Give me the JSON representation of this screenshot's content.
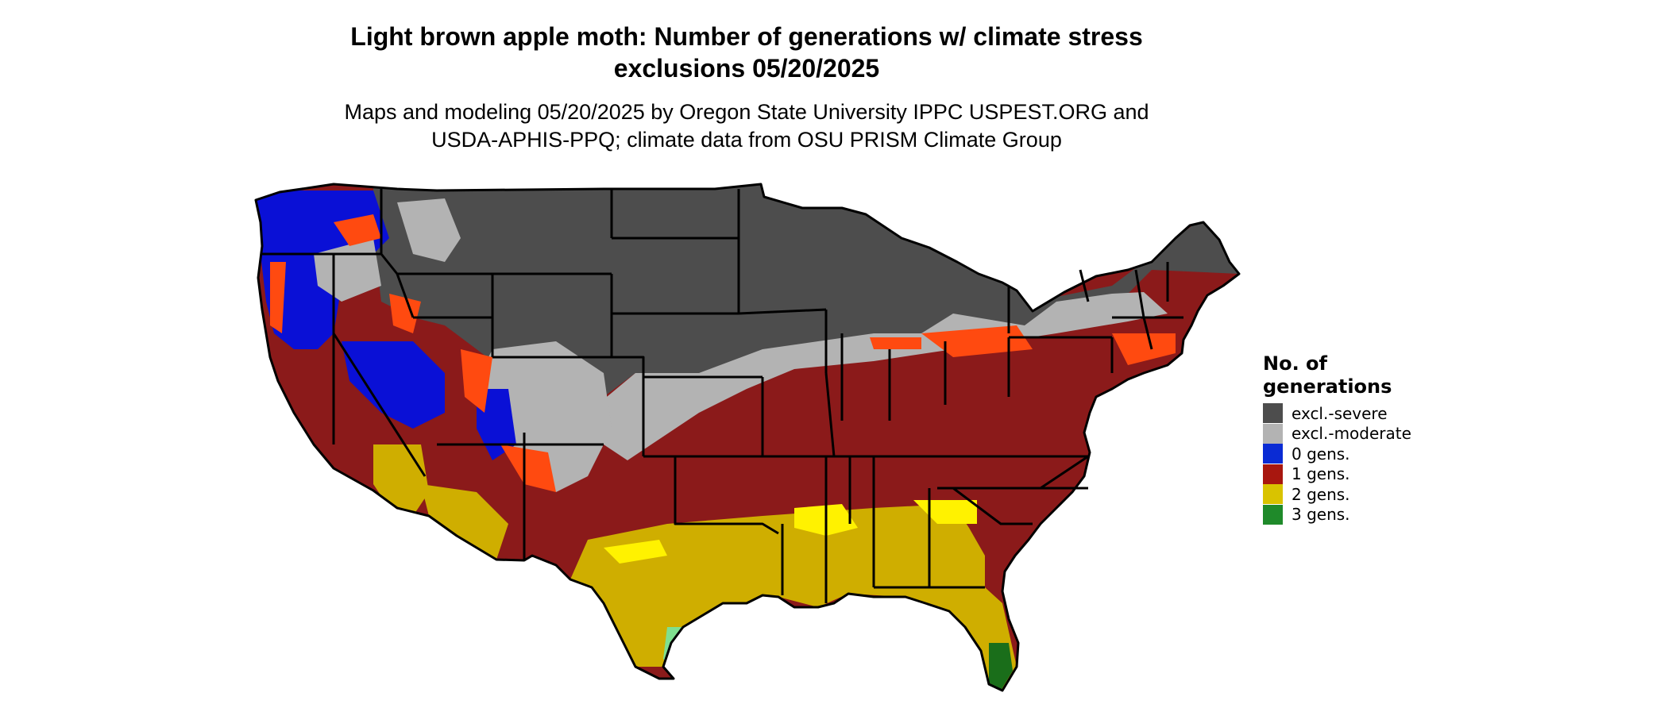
{
  "title_line1": "Light brown apple moth: Number of generations w/ climate stress",
  "title_line2": "exclusions 05/20/2025",
  "subtitle_line1": "Maps and modeling 05/20/2025 by Oregon State University IPPC USPEST.ORG and",
  "subtitle_line2": "USDA-APHIS-PPQ; climate data from OSU PRISM Climate Group",
  "legend": {
    "title_line1": "No. of",
    "title_line2": "generations",
    "items": [
      {
        "label": "excl.-severe",
        "color": "#4d4d4d"
      },
      {
        "label": "excl.-moderate",
        "color": "#b3b3b3"
      },
      {
        "label": "0 gens.",
        "color": "#0a2bd4"
      },
      {
        "label": "1 gens.",
        "color": "#a8170f"
      },
      {
        "label": "2 gens.",
        "color": "#d9c300"
      },
      {
        "label": "3 gens.",
        "color": "#1f8a2a"
      }
    ]
  },
  "map_colors": {
    "severe": "#4d4d4d",
    "moderate": "#b3b3b3",
    "zero": "#0a10d6",
    "one": "#8b1a1a",
    "one_edge": "#ff4a10",
    "two": "#cfae00",
    "two_bright": "#fff200",
    "three": "#1a6e1a",
    "three_light": "#7fe08f"
  }
}
